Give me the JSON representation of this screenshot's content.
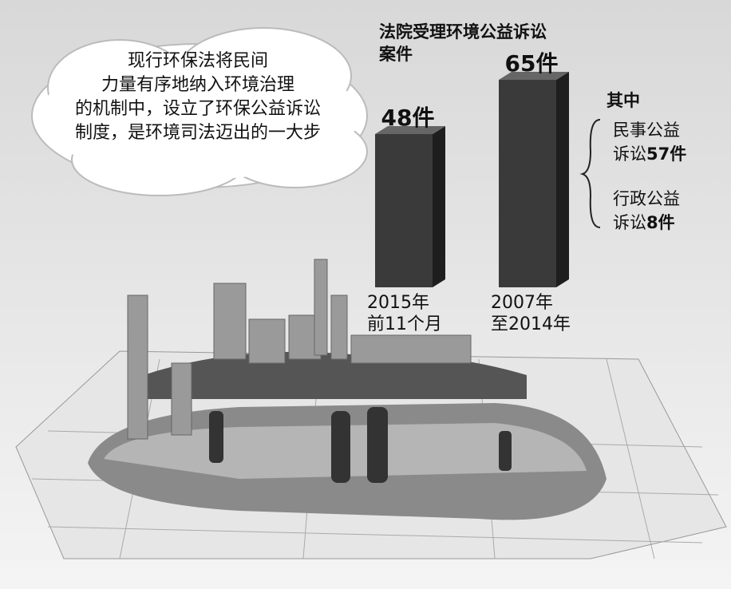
{
  "chart_data": {
    "type": "bar",
    "title": "法院受理环境公益诉讼案件",
    "categories": [
      "2015年\n前11个月",
      "2007年\n至2014年"
    ],
    "values": [
      48,
      65
    ],
    "value_labels": [
      "48件",
      "65件"
    ],
    "color": "#3a3a3a",
    "breakdown": {
      "title": "其中",
      "items": [
        {
          "name": "民事公益\n诉讼",
          "value_label": "57件"
        },
        {
          "name": "行政公益\n诉讼",
          "value_label": "8件"
        }
      ]
    },
    "annotation": "现行环保法将民间\n力量有序地纳入环境治理\n的机制中，设立了环保公益诉讼\n制度，是环境司法迈出的一大步"
  }
}
